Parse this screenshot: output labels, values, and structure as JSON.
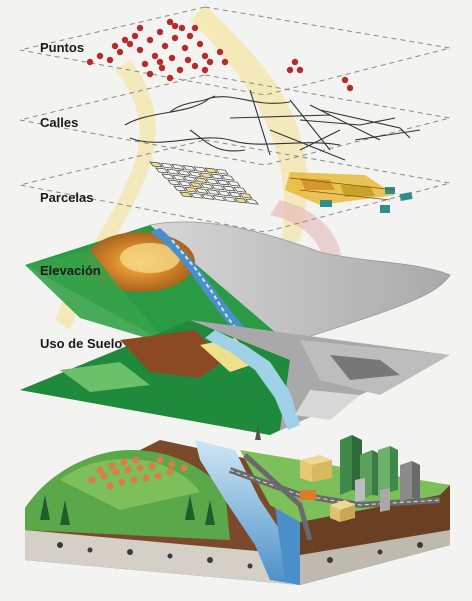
{
  "layers": [
    {
      "id": "puntos",
      "label": "Puntos"
    },
    {
      "id": "calles",
      "label": "Calles"
    },
    {
      "id": "parcelas",
      "label": "Parcelas"
    },
    {
      "id": "elevacion",
      "label": "Elevación"
    },
    {
      "id": "uso",
      "label": "Uso de Suelo"
    }
  ],
  "colors": {
    "points": "#b72a2a",
    "parcel_fill": "#e8b93a",
    "parcel_teal": "#2f8e8a",
    "forest": "#1f8a3c",
    "water": "#4a8fc9",
    "urban_gray": "#8c8c8c",
    "soil": "#7a4a2a"
  }
}
